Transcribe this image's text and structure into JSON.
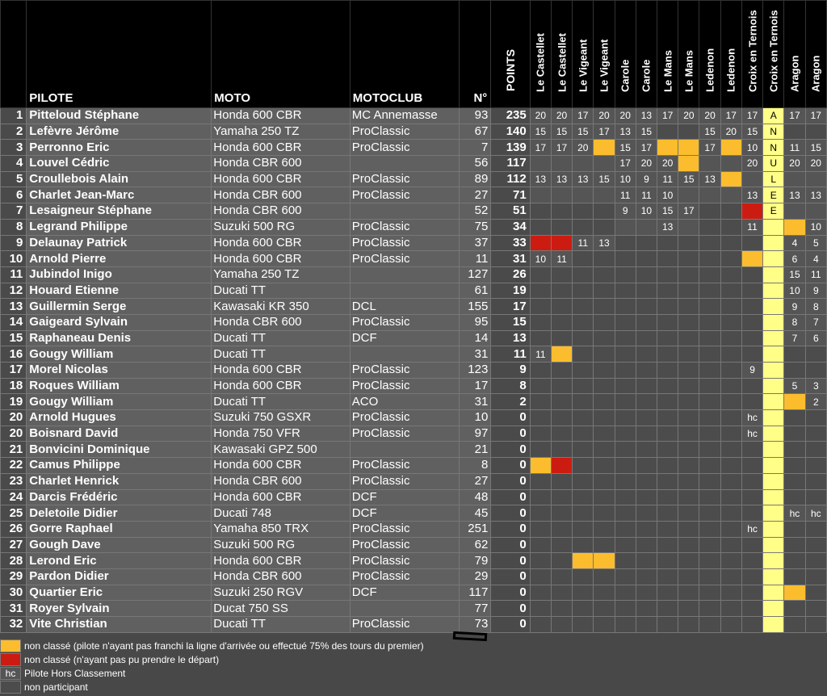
{
  "headers": {
    "pilote": "PILOTE",
    "moto": "MOTO",
    "motoclub": "MOTOCLUB",
    "no": "N°",
    "points": "POINTS",
    "races": [
      "Le Castellet",
      "Le Castellet",
      "Le Vigeant",
      "Le Vigeant",
      "Carole",
      "Carole",
      "Le Mans",
      "Le Mans",
      "Ledenon",
      "Ledenon",
      "Croix en Ternois",
      "Croix en Ternois",
      "Aragon",
      "Aragon"
    ]
  },
  "rows": [
    {
      "rank": "1",
      "name": "Pitteloud Stéphane",
      "moto": "Honda 600 CBR",
      "club": "MC Annemasse",
      "no": "93",
      "pts": "235",
      "r": [
        "20",
        "20",
        "17",
        "20",
        "20",
        "13",
        "17",
        "20",
        "20",
        "17",
        "17",
        "A",
        "17",
        "17"
      ]
    },
    {
      "rank": "2",
      "name": "Lefèvre Jérôme",
      "moto": "Yamaha 250 TZ",
      "club": "ProClassic",
      "no": "67",
      "pts": "140",
      "r": [
        "15",
        "15",
        "15",
        "17",
        "13",
        "15",
        "",
        "",
        "15",
        "20",
        "15",
        "N",
        "",
        ""
      ]
    },
    {
      "rank": "3",
      "name": "Perronno Eric",
      "moto": "Honda 600 CBR",
      "club": "ProClassic",
      "no": "7",
      "pts": "139",
      "r": [
        "17",
        "17",
        "20",
        "Y",
        "15",
        "17",
        "Y",
        "Y",
        "17",
        "Y",
        "10",
        "N",
        "11",
        "15"
      ]
    },
    {
      "rank": "4",
      "name": "Louvel Cédric",
      "moto": "Honda CBR 600",
      "club": "",
      "no": "56",
      "pts": "117",
      "r": [
        "",
        "",
        "",
        "",
        "17",
        "20",
        "20",
        "Y",
        "",
        "",
        "20",
        "U",
        "20",
        "20"
      ]
    },
    {
      "rank": "5",
      "name": "Croullebois Alain",
      "moto": "Honda 600 CBR",
      "club": "ProClassic",
      "no": "89",
      "pts": "112",
      "r": [
        "13",
        "13",
        "13",
        "15",
        "10",
        "9",
        "11",
        "15",
        "13",
        "Y",
        "",
        "L",
        "",
        ""
      ]
    },
    {
      "rank": "6",
      "name": "Charlet Jean-Marc",
      "moto": "Honda CBR 600",
      "club": "ProClassic",
      "no": "27",
      "pts": "71",
      "r": [
        "",
        "",
        "",
        "",
        "11",
        "11",
        "10",
        "",
        "",
        "",
        "13",
        "E",
        "13",
        "13"
      ]
    },
    {
      "rank": "7",
      "name": "Lesaigneur Stéphane",
      "moto": "Honda CBR 600",
      "club": "",
      "no": "52",
      "pts": "51",
      "r": [
        "",
        "",
        "",
        "",
        "9",
        "10",
        "15",
        "17",
        "",
        "",
        "R",
        "E",
        "",
        ""
      ]
    },
    {
      "rank": "8",
      "name": "Legrand Philippe",
      "moto": "Suzuki 500 RG",
      "club": "ProClassic",
      "no": "75",
      "pts": "34",
      "r": [
        "",
        "",
        "",
        "",
        "",
        "",
        "13",
        "",
        "",
        "",
        "11",
        "",
        "Y",
        "10"
      ]
    },
    {
      "rank": "9",
      "name": "Delaunay Patrick",
      "moto": "Honda 600 CBR",
      "club": "ProClassic",
      "no": "37",
      "pts": "33",
      "r": [
        "R",
        "R",
        "11",
        "13",
        "",
        "",
        "",
        "",
        "",
        "",
        "",
        "",
        "4",
        "5"
      ]
    },
    {
      "rank": "10",
      "name": "Arnold Pierre",
      "moto": "Honda 600 CBR",
      "club": "ProClassic",
      "no": "11",
      "pts": "31",
      "r": [
        "10",
        "11",
        "",
        "",
        "",
        "",
        "",
        "",
        "",
        "",
        "Y",
        "",
        "6",
        "4"
      ]
    },
    {
      "rank": "11",
      "name": "Jubindol Inigo",
      "moto": "Yamaha 250 TZ",
      "club": "",
      "no": "127",
      "pts": "26",
      "r": [
        "",
        "",
        "",
        "",
        "",
        "",
        "",
        "",
        "",
        "",
        "",
        "",
        "15",
        "11"
      ]
    },
    {
      "rank": "12",
      "name": "Houard Etienne",
      "moto": "Ducati TT",
      "club": "",
      "no": "61",
      "pts": "19",
      "r": [
        "",
        "",
        "",
        "",
        "",
        "",
        "",
        "",
        "",
        "",
        "",
        "",
        "10",
        "9"
      ]
    },
    {
      "rank": "13",
      "name": "Guillermin Serge",
      "moto": "Kawasaki KR 350",
      "club": "DCL",
      "no": "155",
      "pts": "17",
      "r": [
        "",
        "",
        "",
        "",
        "",
        "",
        "",
        "",
        "",
        "",
        "",
        "",
        "9",
        "8"
      ]
    },
    {
      "rank": "14",
      "name": "Gaigeard Sylvain",
      "moto": "Honda CBR 600",
      "club": "ProClassic",
      "no": "95",
      "pts": "15",
      "r": [
        "",
        "",
        "",
        "",
        "",
        "",
        "",
        "",
        "",
        "",
        "",
        "",
        "8",
        "7"
      ]
    },
    {
      "rank": "15",
      "name": "Raphaneau Denis",
      "moto": "Ducati TT",
      "club": "DCF",
      "no": "14",
      "pts": "13",
      "r": [
        "",
        "",
        "",
        "",
        "",
        "",
        "",
        "",
        "",
        "",
        "",
        "",
        "7",
        "6"
      ]
    },
    {
      "rank": "16",
      "name": "Gougy William",
      "moto": "Ducati TT",
      "club": "",
      "no": "31",
      "pts": "11",
      "r": [
        "11",
        "Y",
        "",
        "",
        "",
        "",
        "",
        "",
        "",
        "",
        "",
        "",
        "",
        ""
      ]
    },
    {
      "rank": "17",
      "name": "Morel Nicolas",
      "moto": "Honda 600 CBR",
      "club": "ProClassic",
      "no": "123",
      "pts": "9",
      "r": [
        "",
        "",
        "",
        "",
        "",
        "",
        "",
        "",
        "",
        "",
        "9",
        "",
        "",
        ""
      ]
    },
    {
      "rank": "18",
      "name": "Roques William",
      "moto": "Honda 600 CBR",
      "club": "ProClassic",
      "no": "17",
      "pts": "8",
      "r": [
        "",
        "",
        "",
        "",
        "",
        "",
        "",
        "",
        "",
        "",
        "",
        "",
        "5",
        "3"
      ]
    },
    {
      "rank": "19",
      "name": "Gougy William",
      "moto": "Ducati TT",
      "club": "ACO",
      "no": "31",
      "pts": "2",
      "r": [
        "",
        "",
        "",
        "",
        "",
        "",
        "",
        "",
        "",
        "",
        "",
        "",
        "Y",
        "2"
      ]
    },
    {
      "rank": "20",
      "name": "Arnold Hugues",
      "moto": "Suzuki 750 GSXR",
      "club": "ProClassic",
      "no": "10",
      "pts": "0",
      "r": [
        "",
        "",
        "",
        "",
        "",
        "",
        "",
        "",
        "",
        "",
        "hc",
        "",
        "",
        ""
      ]
    },
    {
      "rank": "20",
      "name": "Boisnard David",
      "moto": "Honda 750 VFR",
      "club": "ProClassic",
      "no": "97",
      "pts": "0",
      "r": [
        "",
        "",
        "",
        "",
        "",
        "",
        "",
        "",
        "",
        "",
        "hc",
        "",
        "",
        ""
      ]
    },
    {
      "rank": "21",
      "name": "Bonvicini Dominique",
      "moto": "Kawasaki GPZ 500",
      "club": "",
      "no": "21",
      "pts": "0",
      "r": [
        "",
        "",
        "",
        "",
        "",
        "",
        "",
        "",
        "",
        "",
        "",
        "",
        "",
        ""
      ]
    },
    {
      "rank": "22",
      "name": "Camus Philippe",
      "moto": "Honda 600 CBR",
      "club": "ProClassic",
      "no": "8",
      "pts": "0",
      "r": [
        "Y",
        "R",
        "",
        "",
        "",
        "",
        "",
        "",
        "",
        "",
        "",
        "",
        "",
        ""
      ]
    },
    {
      "rank": "23",
      "name": "Charlet Henrick",
      "moto": "Honda CBR 600",
      "club": "ProClassic",
      "no": "27",
      "pts": "0",
      "r": [
        "",
        "",
        "",
        "",
        "",
        "",
        "",
        "",
        "",
        "",
        "",
        "",
        "",
        ""
      ]
    },
    {
      "rank": "24",
      "name": "Darcis Frédéric",
      "moto": "Honda 600 CBR",
      "club": "DCF",
      "no": "48",
      "pts": "0",
      "r": [
        "",
        "",
        "",
        "",
        "",
        "",
        "",
        "",
        "",
        "",
        "",
        "",
        "",
        ""
      ]
    },
    {
      "rank": "25",
      "name": "Deletoile Didier",
      "moto": "Ducati 748",
      "club": "DCF",
      "no": "45",
      "pts": "0",
      "r": [
        "",
        "",
        "",
        "",
        "",
        "",
        "",
        "",
        "",
        "",
        "",
        "",
        "hc",
        "hc"
      ]
    },
    {
      "rank": "26",
      "name": "Gorre Raphael",
      "moto": "Yamaha 850 TRX",
      "club": "ProClassic",
      "no": "251",
      "pts": "0",
      "r": [
        "",
        "",
        "",
        "",
        "",
        "",
        "",
        "",
        "",
        "",
        "hc",
        "",
        "",
        ""
      ]
    },
    {
      "rank": "27",
      "name": "Gough Dave",
      "moto": "Suzuki 500 RG",
      "club": "ProClassic",
      "no": "62",
      "pts": "0",
      "r": [
        "",
        "",
        "",
        "",
        "",
        "",
        "",
        "",
        "",
        "",
        "",
        "",
        "",
        ""
      ]
    },
    {
      "rank": "28",
      "name": "Lerond Eric",
      "moto": "Honda 600 CBR",
      "club": "ProClassic",
      "no": "79",
      "pts": "0",
      "r": [
        "",
        "",
        "Y",
        "Y",
        "",
        "",
        "",
        "",
        "",
        "",
        "",
        "",
        "",
        ""
      ]
    },
    {
      "rank": "29",
      "name": "Pardon Didier",
      "moto": "Honda CBR 600",
      "club": "ProClassic",
      "no": "29",
      "pts": "0",
      "r": [
        "",
        "",
        "",
        "",
        "",
        "",
        "",
        "",
        "",
        "",
        "",
        "",
        "",
        ""
      ]
    },
    {
      "rank": "30",
      "name": "Quartier Eric",
      "moto": "Suzuki 250 RGV",
      "club": "DCF",
      "no": "117",
      "pts": "0",
      "r": [
        "",
        "",
        "",
        "",
        "",
        "",
        "",
        "",
        "",
        "",
        "",
        "",
        "Y",
        ""
      ]
    },
    {
      "rank": "31",
      "name": "Royer Sylvain",
      "moto": "Ducat 750 SS",
      "club": "",
      "no": "77",
      "pts": "0",
      "r": [
        "",
        "",
        "",
        "",
        "",
        "",
        "",
        "",
        "",
        "",
        "",
        "",
        "",
        ""
      ]
    },
    {
      "rank": "32",
      "name": "Vite Christian",
      "moto": "Ducati TT",
      "club": "ProClassic",
      "no": "73",
      "pts": "0",
      "r": [
        "",
        "",
        "",
        "",
        "",
        "",
        "",
        "",
        "",
        "",
        "",
        "",
        "",
        ""
      ]
    }
  ],
  "non_participant_cols": {
    "1": [
      2,
      3,
      4,
      5,
      6,
      7,
      8,
      9,
      11,
      12,
      13,
      14
    ],
    "2": [
      6,
      7,
      8
    ],
    "3": [],
    "4": [
      0,
      1,
      2,
      3,
      8,
      9
    ],
    "5": [
      10,
      12,
      13
    ],
    "6": [
      0,
      1,
      2,
      3,
      7,
      8,
      9
    ],
    "7": [
      0,
      1,
      2,
      3,
      8,
      9,
      12,
      13
    ]
  },
  "legend": {
    "yellow": "non classé (pilote n'ayant pas franchi la ligne d'arrivée ou effectué 75% des tours du premier)",
    "red": "non classé (n'ayant pas pu prendre le départ)",
    "hc_label": "hc",
    "hc": "Pilote Hors Classement",
    "np": "non participant"
  },
  "colors": {
    "yellow": "#fbbd2d",
    "red": "#cc1c12",
    "annule": "#ffff88",
    "header": "#000000"
  }
}
